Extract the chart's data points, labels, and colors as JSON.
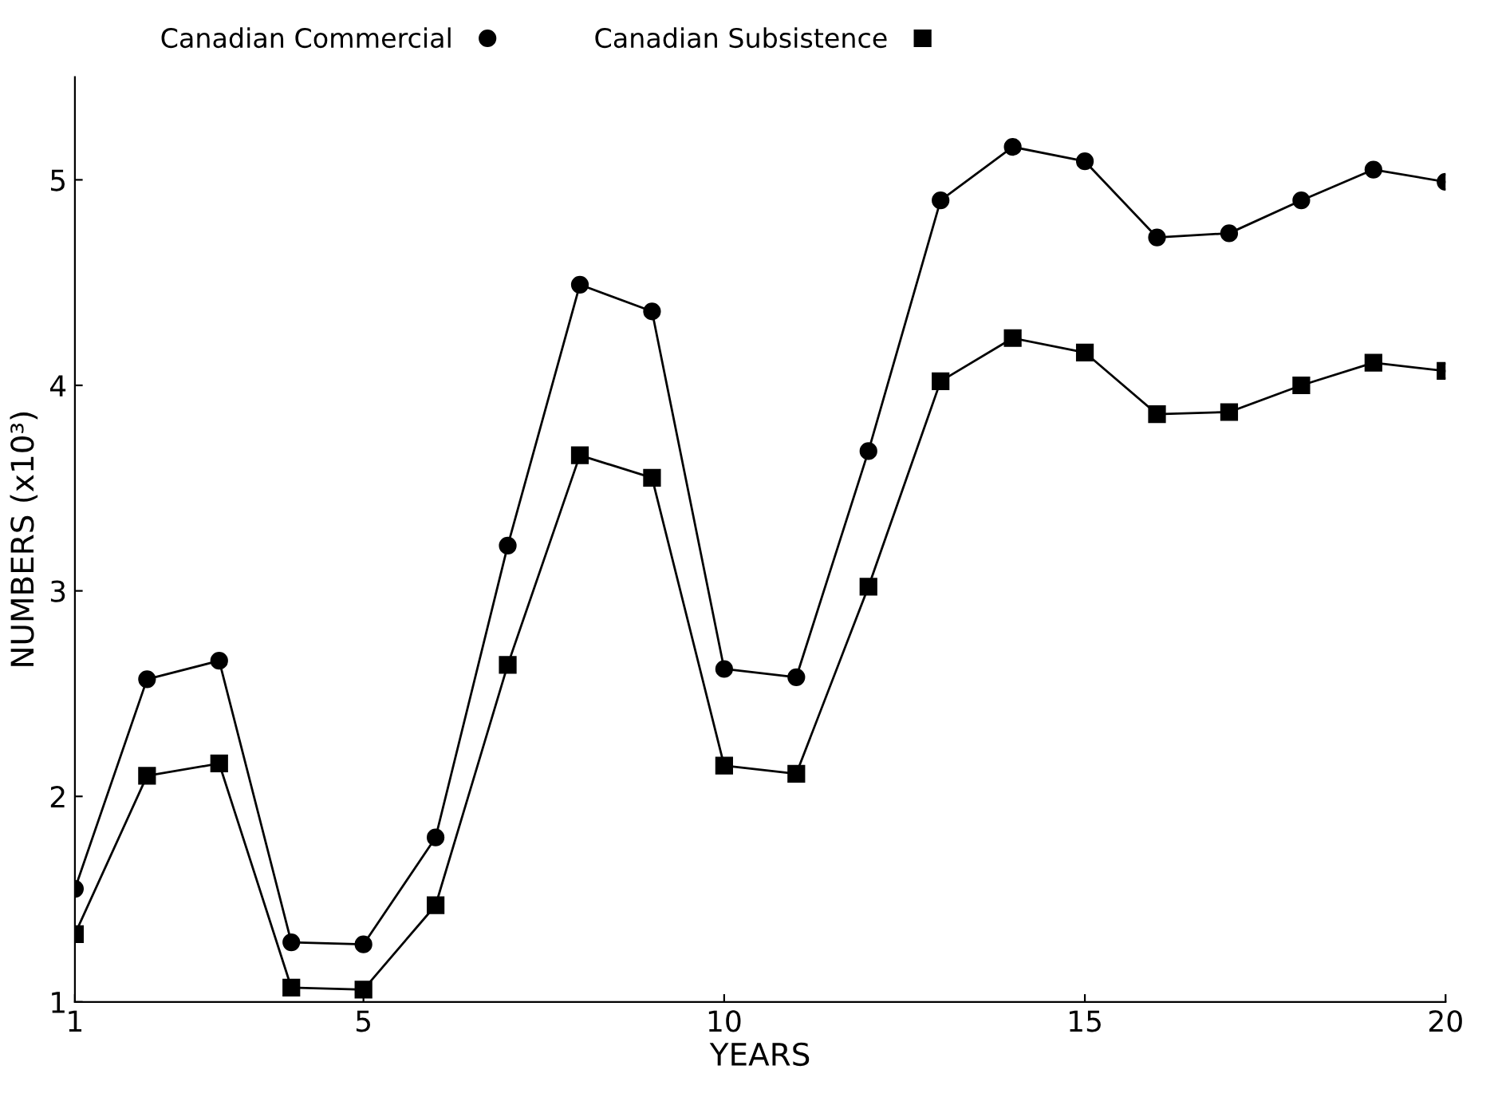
{
  "chart_data": {
    "type": "line",
    "xlabel": "YEARS",
    "ylabel": "NUMBERS (x10³)",
    "x": [
      1,
      2,
      3,
      4,
      5,
      6,
      7,
      8,
      9,
      10,
      11,
      12,
      13,
      14,
      15,
      16,
      17,
      18,
      19,
      20
    ],
    "series": [
      {
        "name": "Canadian Commercial",
        "color": "#000000",
        "marker": "circle",
        "values": [
          1.55,
          2.57,
          2.66,
          1.29,
          1.28,
          1.8,
          3.22,
          4.49,
          4.36,
          2.62,
          2.58,
          3.68,
          4.9,
          5.16,
          5.09,
          4.72,
          4.74,
          4.9,
          5.05,
          4.99
        ]
      },
      {
        "name": "Canadian Subsistence",
        "color": "#000000",
        "marker": "square",
        "values": [
          1.33,
          2.1,
          2.16,
          1.07,
          1.06,
          1.47,
          2.64,
          3.66,
          3.55,
          2.15,
          2.11,
          3.02,
          4.02,
          4.23,
          4.16,
          3.86,
          3.87,
          4.0,
          4.11,
          4.07
        ]
      }
    ],
    "xlim": [
      1,
      20
    ],
    "xticks": [
      1,
      5,
      10,
      15,
      20
    ],
    "ylim": [
      1,
      5.5
    ],
    "yticks": [
      1,
      2,
      3,
      4,
      5
    ],
    "grid": false,
    "legend": "top",
    "line_style": "solid"
  }
}
